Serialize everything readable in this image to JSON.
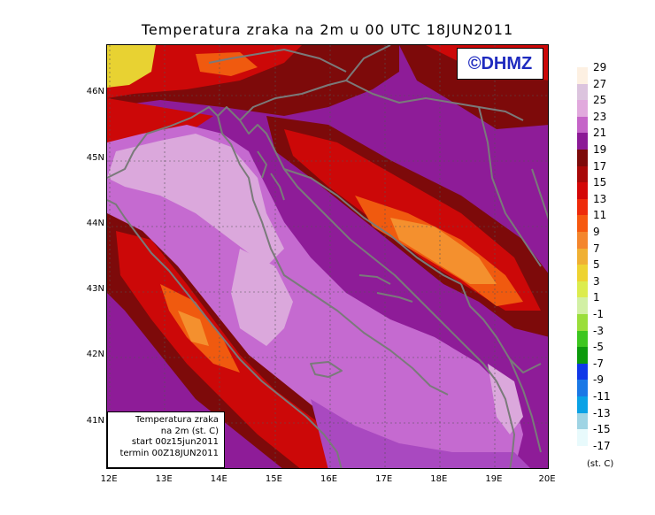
{
  "title": "Temperatura zraka na 2m u 00 UTC 18JUN2011",
  "logo": "©DHMZ",
  "y_axis": {
    "ticks": [
      {
        "label": "46N",
        "value": 46
      },
      {
        "label": "45N",
        "value": 45
      },
      {
        "label": "44N",
        "value": 44
      },
      {
        "label": "43N",
        "value": 43
      },
      {
        "label": "42N",
        "value": 42
      },
      {
        "label": "41N",
        "value": 41
      }
    ],
    "range": [
      40.27,
      46.73
    ]
  },
  "x_axis": {
    "ticks": [
      {
        "label": "12E",
        "value": 12
      },
      {
        "label": "13E",
        "value": 13
      },
      {
        "label": "14E",
        "value": 14
      },
      {
        "label": "15E",
        "value": 15
      },
      {
        "label": "16E",
        "value": 16
      },
      {
        "label": "17E",
        "value": 17
      },
      {
        "label": "18E",
        "value": 18
      },
      {
        "label": "19E",
        "value": 19
      },
      {
        "label": "20E",
        "value": 20
      }
    ],
    "range": [
      11.95,
      20.0
    ]
  },
  "info_box": {
    "line1": "Temperatura zraka",
    "line2": "na 2m (st. C)",
    "line3": "start 00z15jun2011",
    "line4": "termin 00Z18JUN2011"
  },
  "legend": {
    "labels": [
      "29",
      "27",
      "25",
      "23",
      "21",
      "19",
      "17",
      "15",
      "13",
      "11",
      "9",
      "7",
      "5",
      "3",
      "1",
      "-1",
      "-3",
      "-5",
      "-7",
      "-9",
      "-11",
      "-13",
      "-15",
      "-17"
    ],
    "colors": [
      "#fdf0e2",
      "#dcc4de",
      "#e1a9dd",
      "#c564c8",
      "#8c1a96",
      "#7d0a0a",
      "#a80808",
      "#d40707",
      "#ee2a0a",
      "#f6580f",
      "#f4862d",
      "#f0b033",
      "#eed331",
      "#dcec4e",
      "#d2f0a4",
      "#9ade3a",
      "#3dc61f",
      "#0c9a0c",
      "#1038e8",
      "#1a78e6",
      "#0aa2e6",
      "#9fd4e4",
      "#e8fafc"
    ],
    "unit": "(st. C)"
  },
  "map_colors": {
    "sea_light": "#dba8dc",
    "sea_mid": "#c56ad0",
    "sea_deep": "#a949c0",
    "land_purple": "#8e1c98",
    "land_darkred": "#7d0a0a",
    "land_red": "#cc0808",
    "land_orange": "#f05a0f",
    "land_lightorange": "#f4902e",
    "land_yellow": "#e8d232",
    "coast": "#7a7a7a"
  }
}
